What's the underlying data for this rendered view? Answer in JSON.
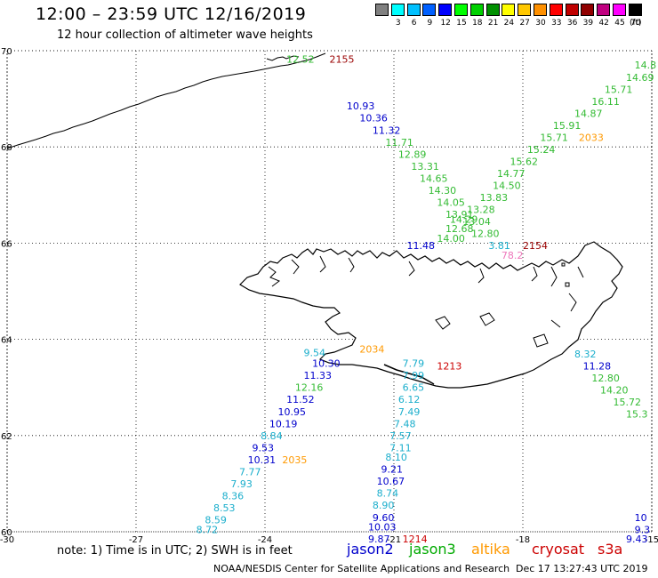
{
  "header": {
    "title": "12:00 – 23:59 UTC 12/16/2019",
    "subtitle": "12 hour collection of altimeter wave heights"
  },
  "legend": {
    "unit": "(ft)",
    "bins": [
      {
        "color": "#808080",
        "label": ""
      },
      {
        "color": "#00ffff",
        "label": "3"
      },
      {
        "color": "#00c0ff",
        "label": "6"
      },
      {
        "color": "#0060ff",
        "label": "9"
      },
      {
        "color": "#0000ff",
        "label": "12"
      },
      {
        "color": "#00ff00",
        "label": "15"
      },
      {
        "color": "#00d000",
        "label": "18"
      },
      {
        "color": "#009000",
        "label": "21"
      },
      {
        "color": "#ffff00",
        "label": "24"
      },
      {
        "color": "#ffc800",
        "label": "27"
      },
      {
        "color": "#ff9000",
        "label": "30"
      },
      {
        "color": "#ff0000",
        "label": "33"
      },
      {
        "color": "#c00000",
        "label": "36"
      },
      {
        "color": "#900000",
        "label": "39"
      },
      {
        "color": "#c00080",
        "label": "42"
      },
      {
        "color": "#ff00ff",
        "label": "45"
      },
      {
        "color": "#000000",
        "label": "70"
      }
    ]
  },
  "axes": {
    "y_ticks": [
      "70",
      "68",
      "66",
      "64",
      "62",
      "60"
    ],
    "x_ticks": [
      "-30",
      "-27",
      "-24",
      "-21",
      "-18",
      "-15"
    ]
  },
  "colors": {
    "jason2": "#0000cc",
    "jason3": "#33bb33",
    "altika": "#ff9900",
    "cryosat": "#cc0000",
    "s3a": "#cc0000",
    "light_green": "#66dd66",
    "cyan": "#1aaecc",
    "pink": "#ee77bb",
    "dark_red": "#990000"
  },
  "map_labels": [
    {
      "text": "12.52",
      "lon": -23.5,
      "lat": 69.82,
      "sat": "jason3"
    },
    {
      "text": "2155",
      "lon": -22.5,
      "lat": 69.82,
      "sat": "dark_red"
    },
    {
      "text": "14.8",
      "lon": -15.4,
      "lat": 69.7,
      "sat": "jason3"
    },
    {
      "text": "14.69",
      "lon": -15.6,
      "lat": 69.45,
      "sat": "jason3"
    },
    {
      "text": "15.71",
      "lon": -16.1,
      "lat": 69.2,
      "sat": "jason3"
    },
    {
      "text": "16.11",
      "lon": -16.4,
      "lat": 68.95,
      "sat": "jason3"
    },
    {
      "text": "14.87",
      "lon": -16.8,
      "lat": 68.7,
      "sat": "jason3"
    },
    {
      "text": "15.91",
      "lon": -17.3,
      "lat": 68.45,
      "sat": "jason3"
    },
    {
      "text": "15.71",
      "lon": -17.6,
      "lat": 68.2,
      "sat": "jason3"
    },
    {
      "text": "2033",
      "lon": -16.7,
      "lat": 68.2,
      "sat": "altika"
    },
    {
      "text": "15.24",
      "lon": -17.9,
      "lat": 67.95,
      "sat": "jason3"
    },
    {
      "text": "15.62",
      "lon": -18.3,
      "lat": 67.7,
      "sat": "jason3"
    },
    {
      "text": "14.77",
      "lon": -18.6,
      "lat": 67.45,
      "sat": "jason3"
    },
    {
      "text": "14.50",
      "lon": -18.7,
      "lat": 67.2,
      "sat": "jason3"
    },
    {
      "text": "13.83",
      "lon": -19.0,
      "lat": 66.95,
      "sat": "jason3"
    },
    {
      "text": "13.28",
      "lon": -19.3,
      "lat": 66.7,
      "sat": "jason3"
    },
    {
      "text": "13.04",
      "lon": -19.4,
      "lat": 66.45,
      "sat": "jason3"
    },
    {
      "text": "12.80",
      "lon": -19.2,
      "lat": 66.2,
      "sat": "jason3"
    },
    {
      "text": "10.93",
      "lon": -22.1,
      "lat": 68.85,
      "sat": "jason2"
    },
    {
      "text": "10.36",
      "lon": -21.8,
      "lat": 68.6,
      "sat": "jason2"
    },
    {
      "text": "11.32",
      "lon": -21.5,
      "lat": 68.35,
      "sat": "jason2"
    },
    {
      "text": "11.71",
      "lon": -21.2,
      "lat": 68.1,
      "sat": "jason3"
    },
    {
      "text": "12.89",
      "lon": -20.9,
      "lat": 67.85,
      "sat": "jason3"
    },
    {
      "text": "13.31",
      "lon": -20.6,
      "lat": 67.6,
      "sat": "jason3"
    },
    {
      "text": "14.65",
      "lon": -20.4,
      "lat": 67.35,
      "sat": "jason3"
    },
    {
      "text": "14.30",
      "lon": -20.2,
      "lat": 67.1,
      "sat": "jason3"
    },
    {
      "text": "14.05",
      "lon": -20.0,
      "lat": 66.85,
      "sat": "jason3"
    },
    {
      "text": "13.91",
      "lon": -19.8,
      "lat": 66.6,
      "sat": "jason3"
    },
    {
      "text": "14.29",
      "lon": -19.7,
      "lat": 66.5,
      "sat": "jason3"
    },
    {
      "text": "12.68",
      "lon": -19.8,
      "lat": 66.3,
      "sat": "jason3"
    },
    {
      "text": "14.00",
      "lon": -20.0,
      "lat": 66.1,
      "sat": "jason3"
    },
    {
      "text": "11.48",
      "lon": -20.7,
      "lat": 65.95,
      "sat": "jason2"
    },
    {
      "text": "3.81",
      "lon": -18.8,
      "lat": 65.95,
      "sat": "cyan"
    },
    {
      "text": "2154",
      "lon": -18.0,
      "lat": 65.95,
      "sat": "dark_red"
    },
    {
      "text": "78.2",
      "lon": -18.5,
      "lat": 65.75,
      "sat": "pink"
    },
    {
      "text": "2034",
      "lon": -21.8,
      "lat": 63.8,
      "sat": "altika"
    },
    {
      "text": "9.54",
      "lon": -23.1,
      "lat": 63.72,
      "sat": "cyan"
    },
    {
      "text": "10.30",
      "lon": -22.9,
      "lat": 63.5,
      "sat": "jason2"
    },
    {
      "text": "11.33",
      "lon": -23.1,
      "lat": 63.25,
      "sat": "jason2"
    },
    {
      "text": "12.16",
      "lon": -23.3,
      "lat": 63.0,
      "sat": "jason3"
    },
    {
      "text": "11.52",
      "lon": -23.5,
      "lat": 62.75,
      "sat": "jason2"
    },
    {
      "text": "10.95",
      "lon": -23.7,
      "lat": 62.5,
      "sat": "jason2"
    },
    {
      "text": "10.19",
      "lon": -23.9,
      "lat": 62.25,
      "sat": "jason2"
    },
    {
      "text": "8.84",
      "lon": -24.1,
      "lat": 62.0,
      "sat": "cyan"
    },
    {
      "text": "9.53",
      "lon": -24.3,
      "lat": 61.75,
      "sat": "jason2"
    },
    {
      "text": "10.31",
      "lon": -24.4,
      "lat": 61.5,
      "sat": "jason2"
    },
    {
      "text": "2035",
      "lon": -23.6,
      "lat": 61.5,
      "sat": "altika"
    },
    {
      "text": "7.77",
      "lon": -24.6,
      "lat": 61.25,
      "sat": "cyan"
    },
    {
      "text": "7.93",
      "lon": -24.8,
      "lat": 61.0,
      "sat": "cyan"
    },
    {
      "text": "8.36",
      "lon": -25.0,
      "lat": 60.75,
      "sat": "cyan"
    },
    {
      "text": "8.53",
      "lon": -25.2,
      "lat": 60.5,
      "sat": "cyan"
    },
    {
      "text": "8.59",
      "lon": -25.4,
      "lat": 60.25,
      "sat": "cyan"
    },
    {
      "text": "8.72",
      "lon": -25.6,
      "lat": 60.05,
      "sat": "cyan"
    },
    {
      "text": "7.79",
      "lon": -20.8,
      "lat": 63.5,
      "sat": "cyan"
    },
    {
      "text": "1213",
      "lon": -20.0,
      "lat": 63.45,
      "sat": "cryosat"
    },
    {
      "text": "7.99",
      "lon": -20.8,
      "lat": 63.25,
      "sat": "cyan"
    },
    {
      "text": "6.65",
      "lon": -20.8,
      "lat": 63.0,
      "sat": "cyan"
    },
    {
      "text": "6.12",
      "lon": -20.9,
      "lat": 62.75,
      "sat": "cyan"
    },
    {
      "text": "7.49",
      "lon": -20.9,
      "lat": 62.5,
      "sat": "cyan"
    },
    {
      "text": "7.48",
      "lon": -21.0,
      "lat": 62.25,
      "sat": "cyan"
    },
    {
      "text": "7.57",
      "lon": -21.1,
      "lat": 62.0,
      "sat": "cyan"
    },
    {
      "text": "7.11",
      "lon": -21.1,
      "lat": 61.75,
      "sat": "cyan"
    },
    {
      "text": "8.10",
      "lon": -21.2,
      "lat": 61.55,
      "sat": "cyan"
    },
    {
      "text": "9.21",
      "lon": -21.3,
      "lat": 61.3,
      "sat": "jason2"
    },
    {
      "text": "10.67",
      "lon": -21.4,
      "lat": 61.05,
      "sat": "jason2"
    },
    {
      "text": "8.74",
      "lon": -21.4,
      "lat": 60.8,
      "sat": "cyan"
    },
    {
      "text": "8.90",
      "lon": -21.5,
      "lat": 60.55,
      "sat": "cyan"
    },
    {
      "text": "9.60",
      "lon": -21.5,
      "lat": 60.3,
      "sat": "jason2"
    },
    {
      "text": "10.03",
      "lon": -21.6,
      "lat": 60.1,
      "sat": "jason2"
    },
    {
      "text": "9.87",
      "lon": -21.6,
      "lat": 59.85,
      "sat": "jason2"
    },
    {
      "text": "1214",
      "lon": -20.8,
      "lat": 59.85,
      "sat": "cryosat"
    },
    {
      "text": "8.32",
      "lon": -16.8,
      "lat": 63.7,
      "sat": "cyan"
    },
    {
      "text": "11.28",
      "lon": -16.6,
      "lat": 63.45,
      "sat": "jason2"
    },
    {
      "text": "12.80",
      "lon": -16.4,
      "lat": 63.2,
      "sat": "jason3"
    },
    {
      "text": "14.20",
      "lon": -16.2,
      "lat": 62.95,
      "sat": "jason3"
    },
    {
      "text": "15.72",
      "lon": -15.9,
      "lat": 62.7,
      "sat": "jason3"
    },
    {
      "text": "15.3",
      "lon": -15.6,
      "lat": 62.45,
      "sat": "jason3"
    },
    {
      "text": "10",
      "lon": -15.4,
      "lat": 60.3,
      "sat": "jason2"
    },
    {
      "text": "9.3",
      "lon": -15.4,
      "lat": 60.05,
      "sat": "jason2"
    },
    {
      "text": "9.43",
      "lon": -15.6,
      "lat": 59.85,
      "sat": "jason2"
    }
  ],
  "footer": {
    "note": "note:  1) Time is in UTC; 2) SWH is in feet",
    "satellites": [
      {
        "name": "jason2",
        "color": "#0000cc"
      },
      {
        "name": "jason3",
        "color": "#00aa00"
      },
      {
        "name": "altika",
        "color": "#ff9900"
      },
      {
        "name": "cryosat",
        "color": "#cc0000"
      },
      {
        "name": "s3a",
        "color": "#cc0000"
      }
    ],
    "credit": "NOAA/NESDIS Center for Satellite Applications and Research",
    "timestamp": "Dec 17 13:27:43 UTC 2019"
  }
}
